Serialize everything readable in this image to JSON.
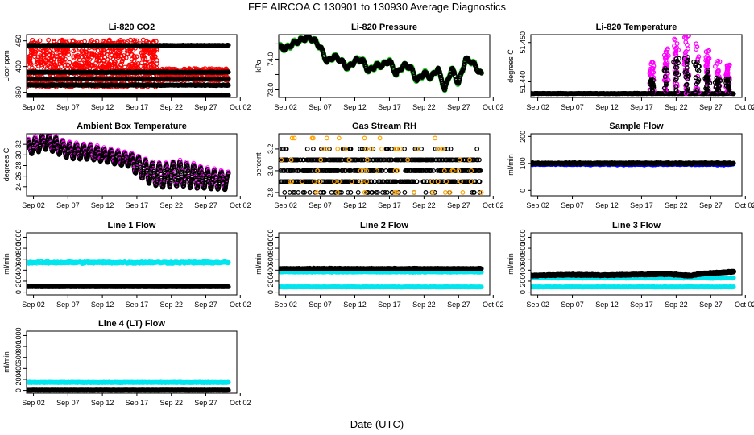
{
  "figure": {
    "title": "FEF   AIRCOA C   130901 to 130930   Average Diagnostics",
    "xlabel": "Date (UTC)"
  },
  "x_axis": {
    "domain": [
      0,
      30.5
    ],
    "ticks": [
      {
        "value": 1,
        "label": "Sep 02"
      },
      {
        "value": 6,
        "label": "Sep 07"
      },
      {
        "value": 11,
        "label": "Sep 12"
      },
      {
        "value": 16,
        "label": "Sep 17"
      },
      {
        "value": 21,
        "label": "Sep 22"
      },
      {
        "value": 26,
        "label": "Sep 27"
      },
      {
        "value": 31,
        "label": "Oct 02"
      }
    ]
  },
  "colors": {
    "red": "#ff0000",
    "black": "#000000",
    "green": "#22cc22",
    "magenta": "#ff00ff",
    "orange": "#ffa500",
    "blue": "#0000ff",
    "cyan": "#00e5ee"
  },
  "chart_data": [
    {
      "id": "co2",
      "type": "scatter",
      "title": "Li-820 CO2",
      "ylabel": "Licor ppm",
      "ylim": [
        340,
        462
      ],
      "yticks": [
        {
          "v": 350,
          "t": "350"
        },
        {
          "v": 400,
          "t": "400"
        },
        {
          "v": 450,
          "t": "450"
        }
      ],
      "series": [
        {
          "name": "sample",
          "color": "red",
          "kind": "band",
          "t_range": [
            0,
            19
          ],
          "low": 360,
          "high": 452,
          "n": 900
        },
        {
          "name": "sample",
          "color": "red",
          "kind": "band",
          "t_range": [
            19,
            29.3
          ],
          "low": 372,
          "high": 396,
          "n": 300
        },
        {
          "name": "ref1",
          "color": "black",
          "kind": "level",
          "level": 441,
          "jitter": 1.2
        },
        {
          "name": "ref2",
          "color": "black",
          "kind": "level",
          "level": 389,
          "jitter": 1.2
        },
        {
          "name": "ref3",
          "color": "black",
          "kind": "level",
          "level": 376,
          "jitter": 1.2
        },
        {
          "name": "ref4",
          "color": "black",
          "kind": "level",
          "level": 364,
          "jitter": 1.2
        },
        {
          "name": "ref5",
          "color": "black",
          "kind": "level",
          "level": 344,
          "jitter": 1.2
        }
      ]
    },
    {
      "id": "pressure",
      "type": "line",
      "title": "Li-820 Pressure",
      "ylabel": "kPa",
      "ylim": [
        72.75,
        74.8
      ],
      "yticks": [
        {
          "v": 73.0,
          "t": "73.0"
        },
        {
          "v": 73.5,
          "t": ""
        },
        {
          "v": 74.0,
          "t": "74.0"
        },
        {
          "v": 74.5,
          "t": ""
        }
      ],
      "series": [
        {
          "name": "pressure",
          "color": "black",
          "edge": "green",
          "kind": "thick",
          "jitter": 0.05,
          "x": [
            0,
            1,
            2,
            3,
            4,
            5,
            6,
            7,
            8,
            9,
            10,
            11,
            12,
            13,
            14,
            15,
            16,
            17,
            18,
            19,
            20,
            21,
            22,
            23,
            24,
            25,
            26,
            27,
            28,
            29.3
          ],
          "y": [
            74.4,
            74.35,
            74.5,
            74.6,
            74.7,
            74.65,
            74.4,
            73.9,
            74.1,
            73.95,
            73.7,
            73.95,
            74.0,
            73.6,
            73.8,
            73.8,
            73.95,
            73.5,
            73.8,
            73.75,
            73.3,
            73.55,
            73.4,
            73.7,
            73.0,
            73.7,
            73.2,
            74.0,
            73.9,
            73.5
          ]
        }
      ]
    },
    {
      "id": "temperature",
      "type": "scatter",
      "title": "Li-820 Temperature",
      "ylabel": "degrees C",
      "ylim": [
        51.436,
        51.452
      ],
      "yticks": [
        {
          "v": 51.44,
          "t": "51.440"
        },
        {
          "v": 51.45,
          "t": "51.450"
        }
      ],
      "series": [
        {
          "name": "base",
          "color": "black",
          "kind": "level",
          "level": 51.437,
          "jitter": 0.0001,
          "t_range": [
            0,
            29.3
          ]
        },
        {
          "name": "spikes-hi",
          "color": "magenta",
          "kind": "spikes",
          "t_range": [
            14.5,
            29.3
          ],
          "base": 51.437,
          "peaks": [
            [
              17.5,
              51.445
            ],
            [
              19.5,
              51.449
            ],
            [
              21,
              51.451
            ],
            [
              22.5,
              51.452
            ],
            [
              24,
              51.451
            ],
            [
              25.5,
              51.448
            ],
            [
              27,
              51.446
            ],
            [
              28.5,
              51.445
            ]
          ],
          "n": 260
        },
        {
          "name": "spikes-lo",
          "color": "black",
          "kind": "spikes",
          "t_range": [
            14.5,
            29.3
          ],
          "base": 51.437,
          "peaks": [
            [
              17.5,
              51.441
            ],
            [
              19.5,
              51.444
            ],
            [
              21,
              51.446
            ],
            [
              22.5,
              51.447
            ],
            [
              24,
              51.446
            ],
            [
              25.5,
              51.443
            ],
            [
              27,
              51.441
            ],
            [
              28.5,
              51.441
            ]
          ],
          "n": 160
        }
      ]
    },
    {
      "id": "boxtemp",
      "type": "line",
      "title": "Ambient Box Temperature",
      "ylabel": "degrees C",
      "ylim": [
        22.3,
        34.0
      ],
      "yticks": [
        {
          "v": 24,
          "t": "24"
        },
        {
          "v": 26,
          "t": "26"
        },
        {
          "v": 28,
          "t": "28"
        },
        {
          "v": 30,
          "t": "30"
        },
        {
          "v": 32,
          "t": "32"
        }
      ],
      "series": [
        {
          "name": "box",
          "color": "black",
          "edge": "magenta",
          "kind": "diurnal",
          "x": [
            0,
            3,
            6,
            9,
            12,
            15,
            16,
            18,
            20,
            22,
            24,
            26,
            29.3
          ],
          "mid": [
            31.3,
            32.5,
            30.8,
            30.5,
            29.7,
            29.0,
            28.0,
            26.5,
            26.0,
            26.5,
            26.0,
            25.5,
            25.0
          ],
          "amp": [
            1.3,
            1.4,
            1.4,
            1.3,
            1.2,
            1.2,
            1.8,
            2.0,
            2.2,
            2.3,
            2.2,
            1.8,
            1.6
          ]
        }
      ]
    },
    {
      "id": "rh",
      "type": "scatter",
      "title": "Gas Stream RH",
      "ylabel": "percent",
      "ylim": [
        2.77,
        3.34
      ],
      "yticks": [
        {
          "v": 2.8,
          "t": "2.8"
        },
        {
          "v": 3.0,
          "t": "3.0"
        },
        {
          "v": 3.2,
          "t": "3.2"
        }
      ],
      "series": [
        {
          "name": "rh-main",
          "color": "black",
          "kind": "levels",
          "levels": [
            3.1,
            3.0,
            2.9
          ],
          "t_range": [
            0,
            29.3
          ],
          "n": 700
        },
        {
          "name": "rh-extra",
          "color": "black",
          "kind": "levels",
          "levels": [
            3.2,
            2.8
          ],
          "t_range": [
            0,
            29.3
          ],
          "n": 80
        },
        {
          "name": "rh-orange",
          "color": "orange",
          "kind": "levels",
          "levels": [
            3.3,
            3.2,
            3.1,
            3.0,
            2.9,
            2.8
          ],
          "t_range": [
            0,
            29.3
          ],
          "n": 70
        }
      ]
    },
    {
      "id": "sampleflow",
      "type": "scatter",
      "title": "Sample Flow",
      "ylabel": "ml/min",
      "ylim": [
        -20,
        210
      ],
      "yticks": [
        {
          "v": 0,
          "t": "0"
        },
        {
          "v": 100,
          "t": "100"
        },
        {
          "v": 200,
          "t": "200"
        }
      ],
      "series": [
        {
          "name": "sample",
          "color": "blue",
          "kind": "level",
          "level": 97,
          "jitter": 4
        },
        {
          "name": "sample-ref",
          "color": "black",
          "kind": "level",
          "level": 101,
          "jitter": 3
        }
      ]
    },
    {
      "id": "line1",
      "type": "scatter",
      "title": "Line 1 Flow",
      "ylabel": "ml/min",
      "ylim": [
        -50,
        1080
      ],
      "yticks": [
        {
          "v": 0,
          "t": "0"
        },
        {
          "v": 200,
          "t": "200"
        },
        {
          "v": 400,
          "t": "400"
        },
        {
          "v": 600,
          "t": "600"
        },
        {
          "v": 800,
          "t": "800"
        },
        {
          "v": 1000,
          "t": "1000"
        }
      ],
      "series": [
        {
          "name": "cyan",
          "color": "cyan",
          "kind": "level",
          "level": 540,
          "jitter": 25
        },
        {
          "name": "black",
          "color": "black",
          "kind": "level",
          "level": 100,
          "jitter": 4
        }
      ]
    },
    {
      "id": "line2",
      "type": "scatter",
      "title": "Line 2 Flow",
      "ylabel": "ml/min",
      "ylim": [
        -50,
        1080
      ],
      "yticks": [
        {
          "v": 0,
          "t": "0"
        },
        {
          "v": 200,
          "t": "200"
        },
        {
          "v": 400,
          "t": "400"
        },
        {
          "v": 600,
          "t": "600"
        },
        {
          "v": 800,
          "t": "800"
        },
        {
          "v": 1000,
          "t": "1000"
        }
      ],
      "series": [
        {
          "name": "cyan-hi",
          "color": "cyan",
          "kind": "level",
          "level": 370,
          "jitter": 12
        },
        {
          "name": "cyan-lo",
          "color": "cyan",
          "kind": "level",
          "level": 95,
          "jitter": 6
        },
        {
          "name": "black",
          "color": "black",
          "kind": "level",
          "level": 430,
          "jitter": 10
        }
      ]
    },
    {
      "id": "line3",
      "type": "scatter",
      "title": "Line 3 Flow",
      "ylabel": "ml/min",
      "ylim": [
        -50,
        1080
      ],
      "yticks": [
        {
          "v": 0,
          "t": "0"
        },
        {
          "v": 200,
          "t": "200"
        },
        {
          "v": 400,
          "t": "400"
        },
        {
          "v": 600,
          "t": "600"
        },
        {
          "v": 800,
          "t": "800"
        },
        {
          "v": 1000,
          "t": "1000"
        }
      ],
      "series": [
        {
          "name": "cyan-hi",
          "color": "cyan",
          "kind": "level",
          "level": 260,
          "jitter": 12
        },
        {
          "name": "cyan-lo",
          "color": "cyan",
          "kind": "level",
          "level": 95,
          "jitter": 6
        },
        {
          "name": "black",
          "color": "black",
          "kind": "curve",
          "x": [
            0,
            5,
            10,
            15,
            20,
            23,
            25,
            29.3
          ],
          "y": [
            300,
            320,
            310,
            320,
            330,
            300,
            340,
            370
          ],
          "jitter": 12
        }
      ]
    },
    {
      "id": "line4",
      "type": "scatter",
      "title": "Line 4 (LT) Flow",
      "ylabel": "ml/min",
      "ylim": [
        -50,
        1080
      ],
      "yticks": [
        {
          "v": 0,
          "t": "0"
        },
        {
          "v": 200,
          "t": "200"
        },
        {
          "v": 400,
          "t": "400"
        },
        {
          "v": 600,
          "t": "600"
        },
        {
          "v": 800,
          "t": "800"
        },
        {
          "v": 1000,
          "t": "1000"
        }
      ],
      "series": [
        {
          "name": "cyan",
          "color": "cyan",
          "kind": "level",
          "level": 145,
          "jitter": 8
        },
        {
          "name": "black",
          "color": "black",
          "kind": "level",
          "level": 5,
          "jitter": 2
        }
      ]
    }
  ]
}
